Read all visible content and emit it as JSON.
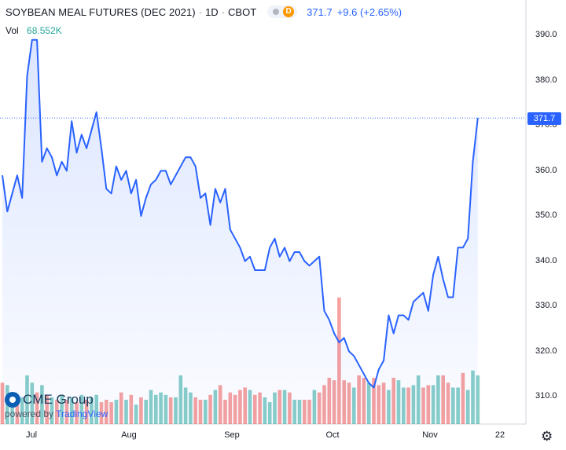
{
  "header": {
    "title": "SOYBEAN MEAL FUTURES (DEC 2021)",
    "interval": "1D",
    "exchange": "CBOT",
    "flag_letter": "D",
    "last_price": "371.7",
    "change": "+9.6 (+2.65%)"
  },
  "volume": {
    "label": "Vol",
    "value": "68.552K"
  },
  "price_tag": "371.7",
  "logo": {
    "name": "CME Group",
    "powered_by": "powered by",
    "tradingview": "TradingView"
  },
  "colors": {
    "line": "#2962ff",
    "vol_up": "#26a69a",
    "vol_down": "#ef5350",
    "fill": "#2962ff"
  },
  "chart_data": {
    "type": "area",
    "title": "SOYBEAN MEAL FUTURES (DEC 2021)",
    "y_ticks": [
      "390.0",
      "380.0",
      "370.0",
      "360.0",
      "350.0",
      "340.0",
      "330.0",
      "320.0",
      "310.0"
    ],
    "x_ticks": [
      "Jul",
      "Aug",
      "Sep",
      "Oct",
      "Nov",
      "22"
    ],
    "ylim": [
      306,
      394
    ],
    "grid": false,
    "last_value": 371.7,
    "price_series": [
      359,
      351,
      355,
      359,
      354,
      381,
      389,
      389,
      362,
      365,
      363,
      359,
      362,
      360,
      371,
      364,
      368,
      365,
      369,
      373,
      365,
      356,
      355,
      361,
      358,
      360,
      355,
      358,
      350,
      354,
      357,
      358,
      360,
      360,
      357,
      359,
      361,
      363,
      363,
      361,
      354,
      355,
      348,
      356,
      353,
      356,
      347,
      345,
      343,
      340,
      341,
      338,
      338,
      338,
      343,
      345,
      341,
      343,
      340,
      342,
      342,
      340,
      339,
      340,
      341,
      329,
      327,
      324,
      322,
      323,
      320,
      319,
      317,
      315,
      313,
      312,
      316,
      318,
      328,
      324,
      328,
      328,
      327,
      331,
      332,
      333,
      329,
      337,
      341,
      336,
      332,
      332,
      343,
      343,
      345,
      362,
      371.7
    ],
    "volume_series": [
      17,
      16,
      10,
      11,
      11,
      20,
      17,
      13,
      16,
      12,
      11,
      10,
      12,
      10,
      11,
      9,
      12,
      10,
      11,
      12,
      9,
      10,
      9,
      10,
      13,
      10,
      12,
      8,
      11,
      10,
      14,
      12,
      13,
      12,
      11,
      11,
      20,
      15,
      13,
      11,
      10,
      10,
      12,
      14,
      16,
      10,
      13,
      12,
      14,
      15,
      14,
      12,
      13,
      11,
      9,
      13,
      14,
      14,
      13,
      10,
      10,
      10,
      10,
      14,
      13,
      16,
      19,
      18,
      52,
      18,
      17,
      15,
      20,
      19,
      17,
      19,
      16,
      17,
      14,
      19,
      18,
      15,
      15,
      16,
      20,
      15,
      16,
      16,
      20,
      20,
      17,
      15,
      15,
      21,
      14,
      22,
      20
    ],
    "volume_down": [
      1,
      0,
      0,
      1,
      0,
      0,
      0,
      1,
      0,
      1,
      0,
      1,
      0,
      1,
      0,
      1,
      0,
      1,
      0,
      0,
      1,
      1,
      1,
      0,
      1,
      0,
      1,
      0,
      1,
      0,
      0,
      0,
      0,
      0,
      1,
      0,
      0,
      0,
      0,
      1,
      1,
      0,
      1,
      0,
      1,
      1,
      1,
      1,
      1,
      1,
      0,
      1,
      1,
      0,
      0,
      0,
      1,
      0,
      1,
      0,
      0,
      1,
      1,
      0,
      1,
      1,
      1,
      1,
      1,
      1,
      1,
      0,
      1,
      1,
      0,
      1,
      1,
      1,
      0,
      1,
      0,
      0,
      1,
      0,
      0,
      1,
      1,
      0,
      0,
      1,
      1,
      0,
      0,
      1,
      0,
      0,
      0
    ]
  }
}
